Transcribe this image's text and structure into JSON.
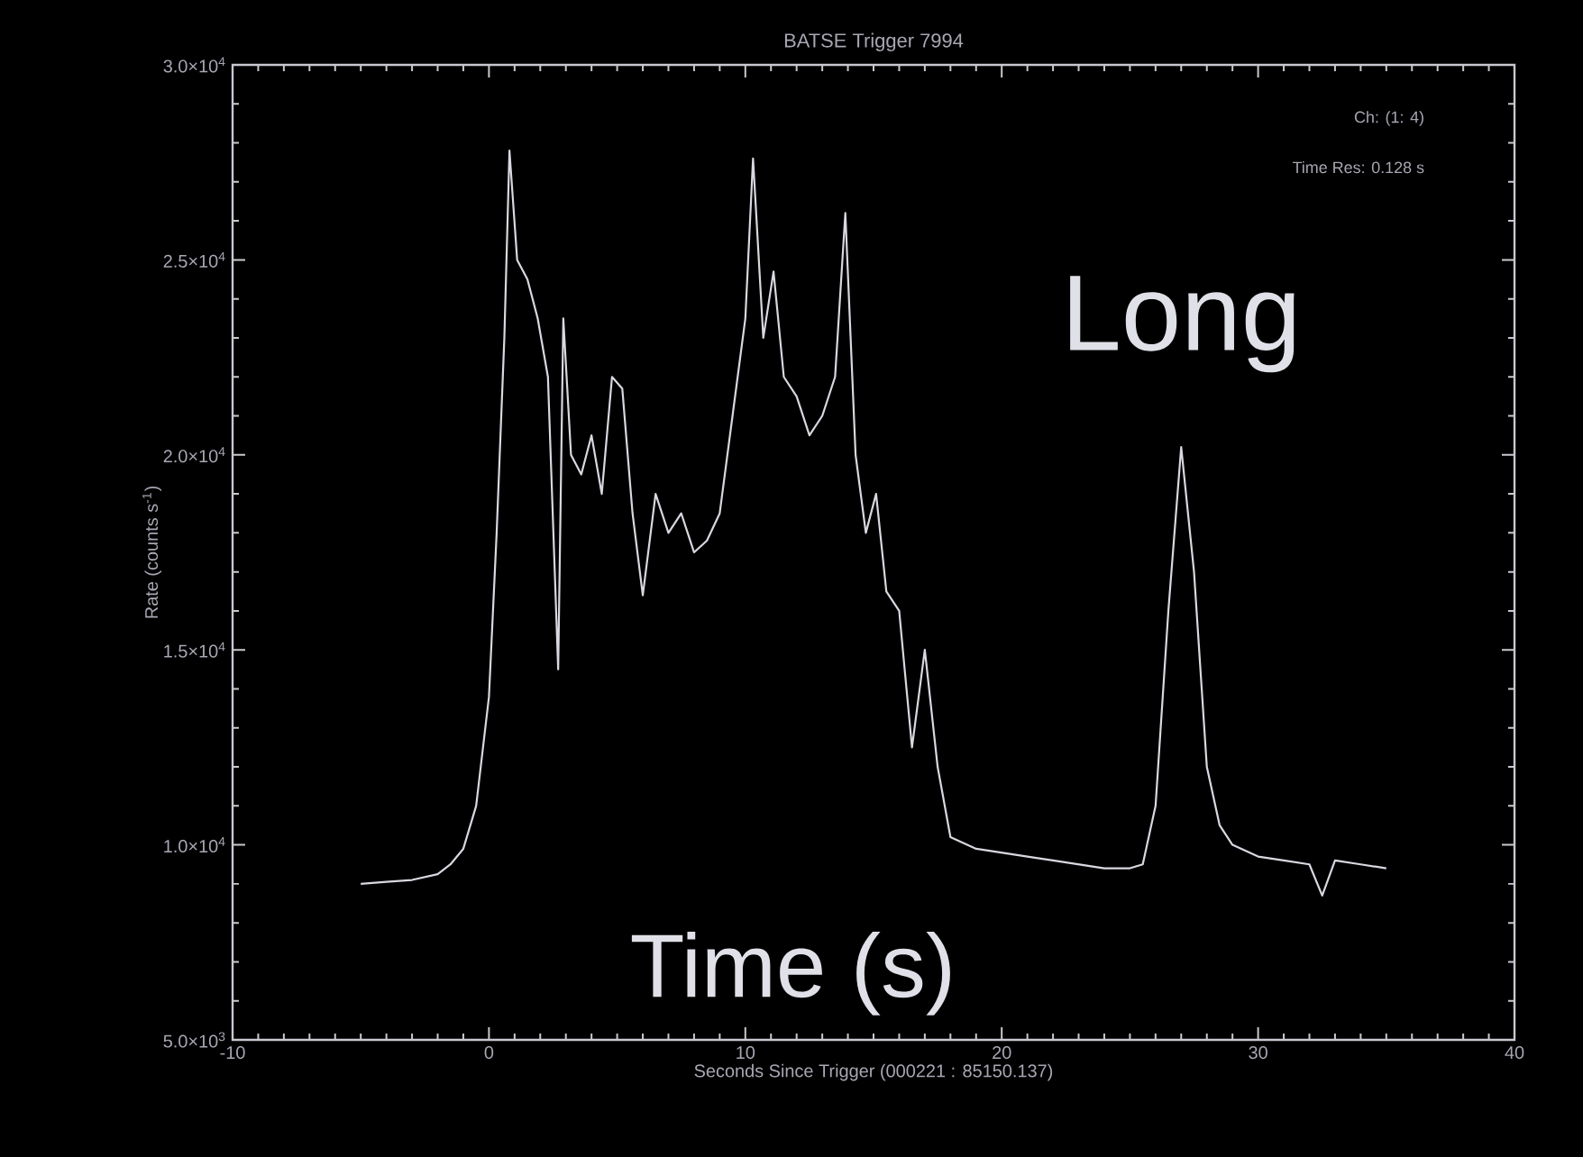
{
  "chart_data": {
    "type": "line",
    "title": "BATSE Trigger 7994",
    "xlabel": "Seconds Since Trigger (000221 : 85150.137)",
    "ylabel": "Rate (counts s$^{-1}$)",
    "annotations": [
      "Ch: (1: 4)",
      "Time Res: 0.128 s",
      "Long",
      "Time (s)"
    ],
    "xlim": [
      -10,
      40
    ],
    "xticks": [
      -10,
      0,
      10,
      20,
      30,
      40
    ],
    "ylim": [
      5000,
      30000
    ],
    "yticks": [
      {
        "value": 5000,
        "label": "5.0×10$^{3}$"
      },
      {
        "value": 10000,
        "label": "1.0×10$^{4}$"
      },
      {
        "value": 15000,
        "label": "1.5×10$^{4}$"
      },
      {
        "value": 20000,
        "label": "2.0×10$^{4}$"
      },
      {
        "value": 25000,
        "label": "2.5×10$^{4}$"
      },
      {
        "value": 30000,
        "label": "3.0×10$^{4}$"
      }
    ],
    "x": [
      -5,
      -4,
      -3,
      -2,
      -1.5,
      -1,
      -0.5,
      0,
      0.3,
      0.6,
      0.8,
      1.1,
      1.5,
      1.9,
      2.3,
      2.7,
      2.9,
      3.2,
      3.6,
      4.0,
      4.4,
      4.8,
      5.2,
      5.6,
      6.0,
      6.5,
      7.0,
      7.5,
      8.0,
      8.5,
      9.0,
      9.5,
      10.0,
      10.3,
      10.7,
      11.1,
      11.5,
      12.0,
      12.5,
      13.0,
      13.5,
      13.9,
      14.3,
      14.7,
      15.1,
      15.5,
      16.0,
      16.5,
      17.0,
      17.5,
      18.0,
      19.0,
      20.0,
      21.0,
      22.0,
      23.0,
      24.0,
      25.0,
      25.5,
      26.0,
      26.5,
      27.0,
      27.5,
      28.0,
      28.5,
      29.0,
      30.0,
      31.0,
      32.0,
      32.5,
      33.0,
      34.0,
      35.0
    ],
    "color": "#d8d8e0",
    "values": [
      9000,
      9050,
      9100,
      9250,
      9500,
      9900,
      11000,
      13800,
      18000,
      23000,
      27800,
      25000,
      24500,
      23500,
      22000,
      14500,
      23500,
      20000,
      19500,
      20500,
      19000,
      22000,
      21700,
      18500,
      16400,
      19000,
      18000,
      18500,
      17500,
      17800,
      18500,
      21000,
      23500,
      27600,
      23000,
      24700,
      22000,
      21500,
      20500,
      21000,
      22000,
      26200,
      20000,
      18000,
      19000,
      16500,
      16000,
      12500,
      15000,
      12000,
      10200,
      9900,
      9800,
      9700,
      9600,
      9500,
      9400,
      9400,
      9500,
      11000,
      16000,
      20200,
      17000,
      12000,
      10500,
      10000,
      9700,
      9600,
      9500,
      8700,
      9600,
      9500,
      9400
    ]
  }
}
